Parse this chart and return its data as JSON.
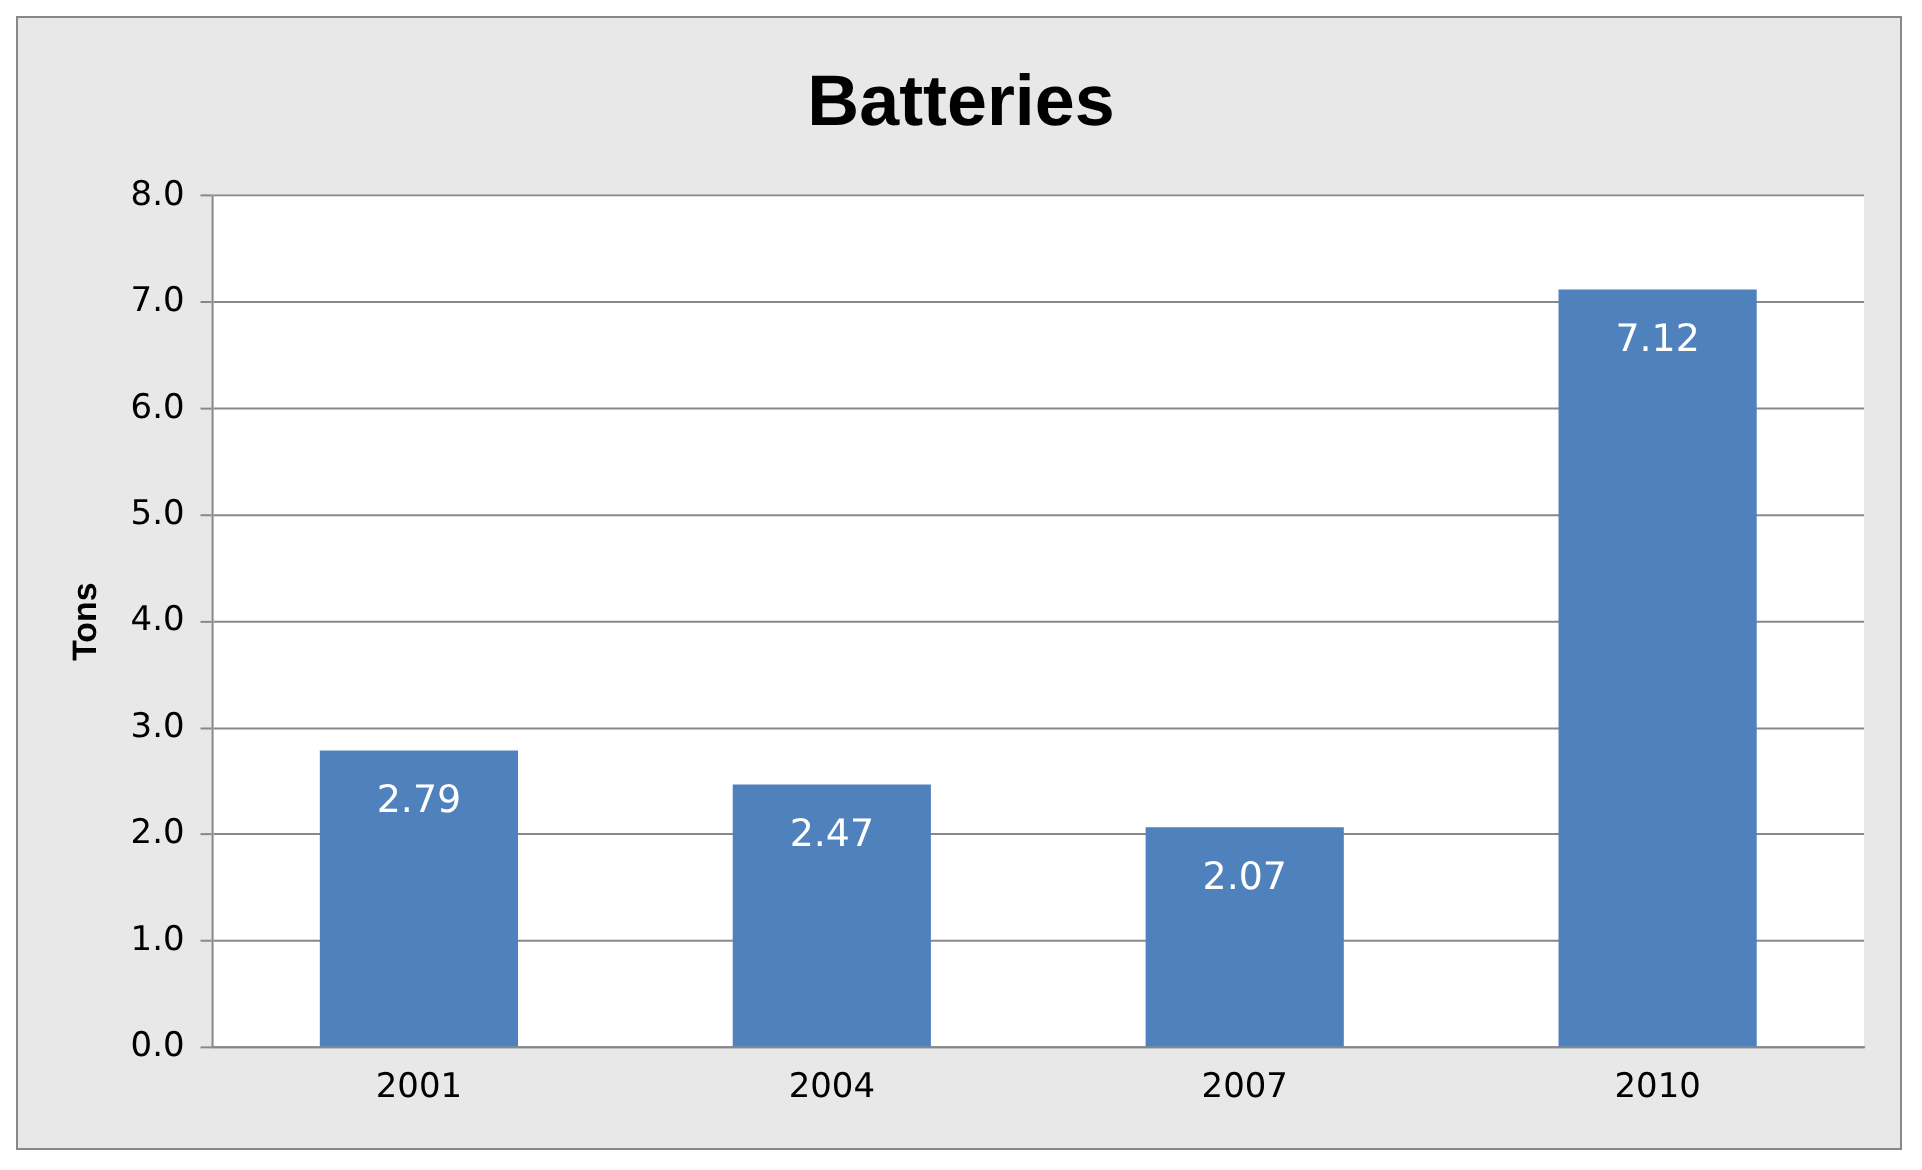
{
  "chart_data": {
    "type": "bar",
    "title": "Batteries",
    "ylabel": "Tons",
    "categories": [
      "2001",
      "2004",
      "2007",
      "2010"
    ],
    "values": [
      2.79,
      2.47,
      2.07,
      7.12
    ],
    "color": "#4f81bd",
    "ylim": [
      0,
      8
    ],
    "yticks": [
      {
        "value": 0,
        "label": "0.0"
      },
      {
        "value": 1,
        "label": "1.0"
      },
      {
        "value": 2,
        "label": "2.0"
      },
      {
        "value": 3,
        "label": "3.0"
      },
      {
        "value": 4,
        "label": "4.0"
      },
      {
        "value": 5,
        "label": "5.0"
      },
      {
        "value": 6,
        "label": "6.0"
      },
      {
        "value": 7,
        "label": "7.0"
      },
      {
        "value": 8,
        "label": "8.0"
      }
    ],
    "grid": "y",
    "data_labels": true,
    "legend": false
  }
}
